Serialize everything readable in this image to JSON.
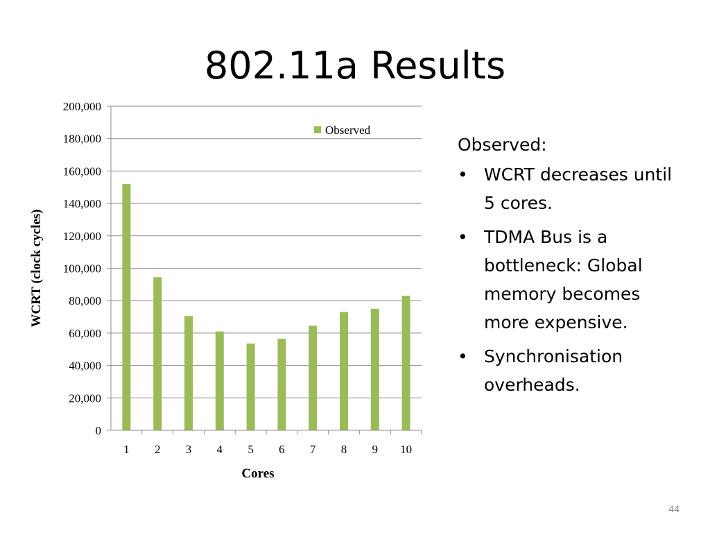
{
  "slide": {
    "title": "802.11a Results",
    "page_number": "44"
  },
  "notes": {
    "heading": "Observed:",
    "bullets": [
      "WCRT decreases until 5 cores.",
      "TDMA Bus is a bottleneck: Global memory becomes more expensive.",
      "Synchronisation overheads."
    ]
  },
  "chart_data": {
    "type": "bar",
    "categories": [
      "1",
      "2",
      "3",
      "4",
      "5",
      "6",
      "7",
      "8",
      "9",
      "10"
    ],
    "series": [
      {
        "name": "Observed",
        "values": [
          152000,
          94500,
          70500,
          61000,
          53500,
          56500,
          64500,
          73000,
          75000,
          83000
        ],
        "color": "#9bbb59"
      }
    ],
    "xlabel": "Cores",
    "ylabel": "WCRT (clock cycles)",
    "ylim": [
      0,
      200000
    ],
    "yticks": [
      "0",
      "20,000",
      "40,000",
      "60,000",
      "80,000",
      "100,000",
      "120,000",
      "140,000",
      "160,000",
      "180,000",
      "200,000"
    ],
    "grid": true,
    "legend_position": "top-right"
  }
}
